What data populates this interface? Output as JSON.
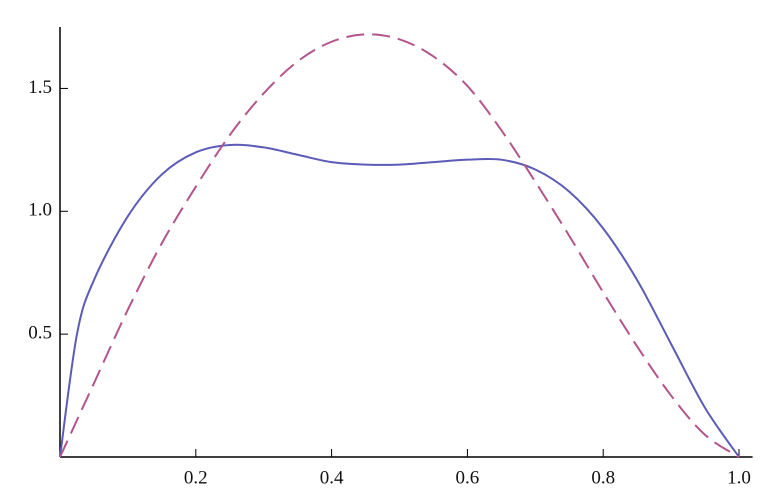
{
  "chart_data": {
    "type": "line",
    "x": [
      0,
      0.025,
      0.05,
      0.1,
      0.15,
      0.2,
      0.25,
      0.3,
      0.35,
      0.4,
      0.45,
      0.5,
      0.55,
      0.6,
      0.65,
      0.7,
      0.75,
      0.8,
      0.85,
      0.9,
      0.95,
      1.0
    ],
    "series": [
      {
        "color": "#5b5bb8",
        "dashed": false,
        "values": [
          0,
          0.5,
          0.72,
          0.98,
          1.15,
          1.24,
          1.27,
          1.26,
          1.23,
          1.2,
          1.19,
          1.19,
          1.2,
          1.21,
          1.21,
          1.17,
          1.08,
          0.93,
          0.72,
          0.46,
          0.2,
          0
        ]
      },
      {
        "color": "#b3558c",
        "dashed": true,
        "values": [
          0,
          0.15,
          0.3,
          0.6,
          0.87,
          1.1,
          1.31,
          1.48,
          1.61,
          1.69,
          1.72,
          1.7,
          1.63,
          1.51,
          1.33,
          1.12,
          0.9,
          0.67,
          0.45,
          0.25,
          0.09,
          0
        ]
      }
    ],
    "xlim": [
      0,
      1.02
    ],
    "ylim": [
      0,
      1.75
    ],
    "xticks": [
      0.2,
      0.4,
      0.6,
      0.8,
      {
        "value": 1,
        "label": "1.0"
      }
    ],
    "yticks": [
      0.5,
      {
        "value": 1,
        "label": "1.0"
      },
      1.5
    ]
  }
}
